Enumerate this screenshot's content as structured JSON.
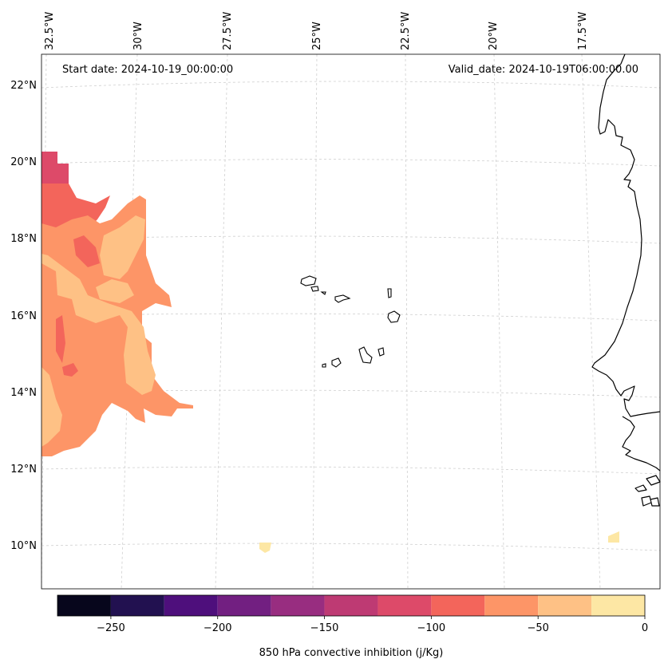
{
  "header": {
    "start_date": "Start date: 2024-10-19_00:00:00",
    "valid_date": "Valid_date: 2024-10-19T06:00:00.00"
  },
  "map": {
    "lon_labels": [
      "32.5°W",
      "30°W",
      "27.5°W",
      "25°W",
      "22.5°W",
      "20°W",
      "17.5°W"
    ],
    "lat_labels": [
      "22°N",
      "20°N",
      "18°N",
      "16°N",
      "14°N",
      "12°N",
      "10°N"
    ],
    "gridlines": "dashed-light-gray"
  },
  "colorbar": {
    "label": "850 hPa convective inhibition (j/Kg)",
    "tick_labels": [
      "−250",
      "−200",
      "−150",
      "−100",
      "−50",
      "0"
    ],
    "bins": [
      -275,
      -250,
      -225,
      -200,
      -175,
      -150,
      -125,
      -100,
      -75,
      -50,
      -25,
      0
    ],
    "colors": [
      "#07061c",
      "#221150",
      "#4e0f7c",
      "#721f81",
      "#982d80",
      "#be3a73",
      "#dd4a69",
      "#f3655b",
      "#fd9567",
      "#fec185",
      "#fde7a4"
    ]
  }
}
